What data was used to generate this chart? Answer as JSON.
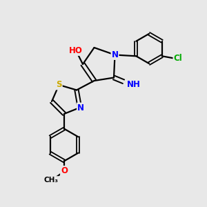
{
  "background_color": "#e8e8e8",
  "bond_color": "#000000",
  "atom_colors": {
    "N": "#0000ff",
    "O": "#ff0000",
    "S": "#ccaa00",
    "Cl": "#00aa00",
    "C": "#000000",
    "H": "#000000"
  },
  "figsize": [
    3.0,
    3.0
  ],
  "dpi": 100,
  "xlim": [
    0,
    10
  ],
  "ylim": [
    0,
    10
  ]
}
